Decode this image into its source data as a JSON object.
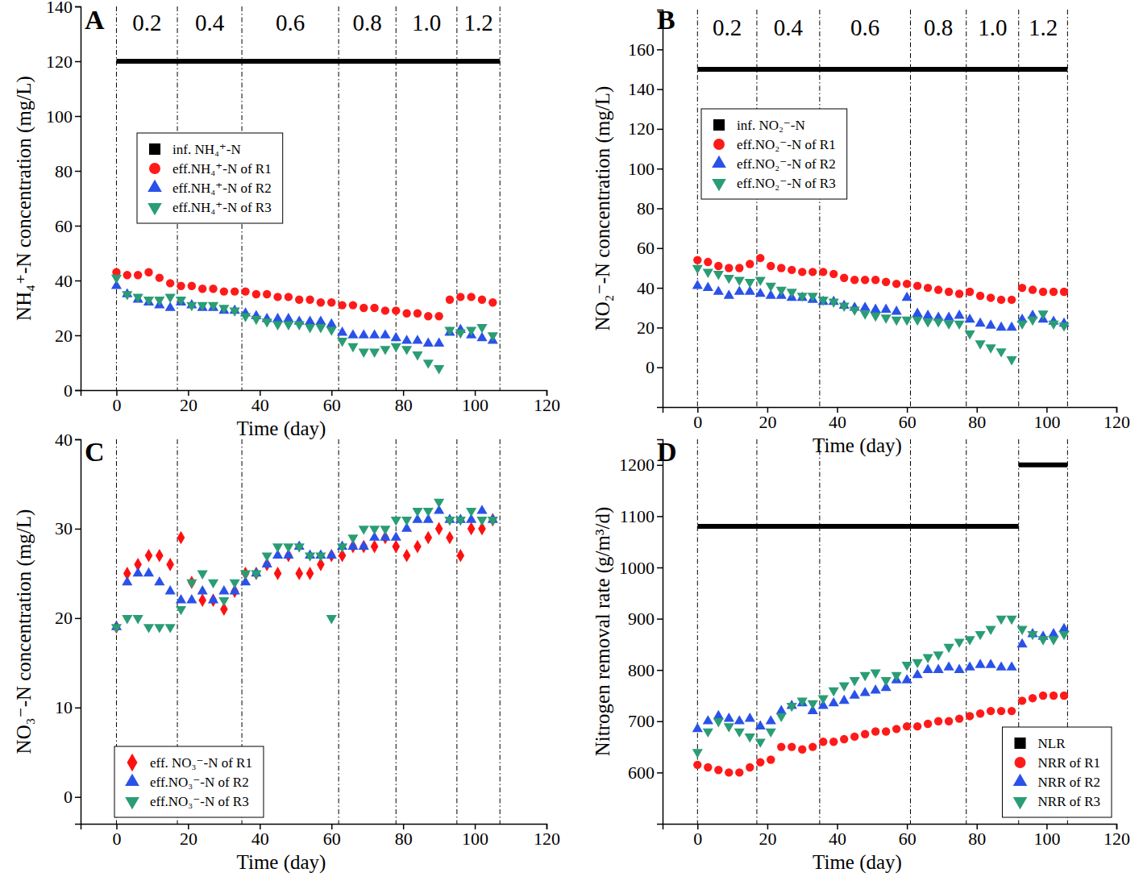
{
  "chart_data": [
    {
      "type": "scatter",
      "title": "A",
      "x_label": "Time (day)",
      "y_label": "NH₄⁺-N concentration (mg/L)",
      "xlim": [
        -10,
        120
      ],
      "ylim": [
        0,
        140
      ],
      "xticks": [
        0,
        20,
        40,
        60,
        80,
        100,
        120
      ],
      "yticks": [
        0,
        20,
        40,
        60,
        80,
        100,
        120,
        140
      ],
      "legend": "upper left",
      "phase_lines": [
        0,
        17,
        35,
        62,
        78,
        95,
        107
      ],
      "phase_labels": [
        "0.2",
        "0.4",
        "0.6",
        "0.8",
        "1.0",
        "1.2"
      ],
      "x": [
        0,
        3,
        6,
        9,
        12,
        15,
        18,
        21,
        24,
        27,
        30,
        33,
        36,
        39,
        42,
        45,
        48,
        51,
        54,
        57,
        60,
        63,
        66,
        69,
        72,
        75,
        78,
        81,
        84,
        87,
        90,
        93,
        96,
        99,
        102,
        105
      ],
      "series": [
        {
          "name": "inf. NH₄⁺-N",
          "type": "line",
          "marker": "square",
          "color": "#000000",
          "x": [
            0,
            107
          ],
          "values": [
            120,
            120
          ]
        },
        {
          "name": "eff.NH₄⁺-N of R1",
          "marker": "circle",
          "color": "#ff1a1a",
          "values": [
            43,
            42,
            42,
            43,
            41,
            39,
            38,
            38,
            37,
            37,
            36,
            36,
            36,
            35,
            35,
            34,
            34,
            33,
            33,
            32,
            32,
            31,
            31,
            30,
            30,
            29,
            29,
            28,
            28,
            27,
            27,
            33,
            34,
            34,
            33,
            32
          ]
        },
        {
          "name": "eff.NH₄⁺-N of R2",
          "marker": "triangle-up",
          "color": "#2a52e8",
          "values": [
            38,
            35,
            33,
            32,
            31,
            30,
            32,
            31,
            30,
            30,
            29,
            29,
            28,
            27,
            26,
            26,
            26,
            25,
            25,
            25,
            24,
            21,
            20,
            20,
            20,
            20,
            19,
            18,
            18,
            17,
            17,
            21,
            22,
            20,
            19,
            18
          ]
        },
        {
          "name": "eff.NH₄⁺-N of R3",
          "marker": "triangle-down",
          "color": "#2a9d74",
          "values": [
            41,
            35,
            34,
            33,
            33,
            34,
            33,
            31,
            31,
            31,
            30,
            29,
            27,
            26,
            25,
            24,
            24,
            24,
            23,
            23,
            22,
            18,
            16,
            14,
            14,
            15,
            16,
            15,
            13,
            10,
            8,
            22,
            21,
            22,
            23,
            20
          ]
        }
      ]
    },
    {
      "type": "scatter",
      "title": "B",
      "x_label": "Time (day)",
      "y_label": "NO₂⁻-N concentration (mg/L)",
      "xlim": [
        -10,
        120
      ],
      "ylim": [
        -20,
        180
      ],
      "xticks": [
        0,
        20,
        40,
        60,
        80,
        100,
        120
      ],
      "yticks": [
        0,
        20,
        40,
        60,
        80,
        100,
        120,
        140,
        160
      ],
      "legend": "upper left",
      "phase_lines": [
        0,
        17,
        35,
        61,
        77,
        92,
        106
      ],
      "phase_labels": [
        "0.2",
        "0.4",
        "0.6",
        "0.8",
        "1.0",
        "1.2"
      ],
      "x": [
        0,
        3,
        6,
        9,
        12,
        15,
        18,
        21,
        24,
        27,
        30,
        33,
        36,
        39,
        42,
        45,
        48,
        51,
        54,
        57,
        60,
        63,
        66,
        69,
        72,
        75,
        78,
        81,
        84,
        87,
        90,
        93,
        96,
        99,
        102,
        105
      ],
      "series": [
        {
          "name": "inf. NO₂⁻-N",
          "type": "line",
          "marker": "square",
          "color": "#000000",
          "x": [
            0,
            106
          ],
          "values": [
            150,
            150
          ]
        },
        {
          "name": "eff.NO₂⁻-N of R1",
          "marker": "circle",
          "color": "#ff1a1a",
          "values": [
            54,
            53,
            51,
            50,
            50,
            52,
            55,
            51,
            50,
            49,
            48,
            48,
            48,
            47,
            45,
            44,
            44,
            44,
            43,
            42,
            42,
            41,
            40,
            39,
            38,
            37,
            38,
            36,
            35,
            34,
            34,
            40,
            39,
            38,
            38,
            38
          ]
        },
        {
          "name": "eff.NO₂⁻-N of R2",
          "marker": "triangle-up",
          "color": "#2a52e8",
          "values": [
            41,
            40,
            38,
            36,
            38,
            38,
            37,
            36,
            36,
            35,
            35,
            34,
            33,
            33,
            31,
            30,
            30,
            29,
            29,
            28,
            35,
            27,
            26,
            25,
            25,
            26,
            24,
            22,
            21,
            20,
            20,
            24,
            26,
            24,
            23,
            22
          ]
        },
        {
          "name": "eff.NO₂⁻-N of R3",
          "marker": "triangle-down",
          "color": "#2a9d74",
          "values": [
            50,
            48,
            47,
            45,
            44,
            43,
            44,
            41,
            39,
            38,
            36,
            36,
            34,
            33,
            31,
            29,
            27,
            26,
            25,
            24,
            24,
            24,
            23,
            23,
            22,
            22,
            17,
            12,
            10,
            8,
            4,
            22,
            24,
            27,
            22,
            21
          ]
        }
      ]
    },
    {
      "type": "scatter",
      "title": "C",
      "x_label": "Time (day)",
      "y_label": "NO₃⁻-N concentration (mg/L)",
      "xlim": [
        -10,
        120
      ],
      "ylim": [
        -3,
        40
      ],
      "xticks": [
        0,
        20,
        40,
        60,
        80,
        100,
        120
      ],
      "yticks": [
        0,
        10,
        20,
        30,
        40
      ],
      "legend": "lower left",
      "phase_lines": [
        0,
        17,
        35,
        62,
        78,
        95,
        107
      ],
      "x": [
        0,
        3,
        6,
        9,
        12,
        15,
        18,
        21,
        24,
        27,
        30,
        33,
        36,
        39,
        42,
        45,
        48,
        51,
        54,
        57,
        60,
        63,
        66,
        69,
        72,
        75,
        78,
        81,
        84,
        87,
        90,
        93,
        96,
        99,
        102,
        105
      ],
      "series": [
        {
          "name": "eff. NO₃⁻-N of R1",
          "marker": "diamond",
          "color": "#ff1010",
          "values": [
            19,
            25,
            26,
            27,
            27,
            26,
            29,
            24,
            22,
            22,
            21,
            23,
            25,
            25,
            26,
            25,
            27,
            25,
            25,
            26,
            27,
            27,
            28,
            28,
            28,
            29,
            28,
            27,
            28,
            29,
            30,
            29,
            27,
            30,
            30,
            31
          ]
        },
        {
          "name": "eff.NO₃⁻-N of R2",
          "marker": "triangle-up",
          "color": "#2a52e8",
          "values": [
            19,
            24,
            25,
            25,
            24,
            23,
            22,
            22,
            23,
            22,
            23,
            23,
            24,
            25,
            26,
            27,
            27,
            28,
            27,
            27,
            27,
            28,
            28,
            28,
            29,
            29,
            29,
            30,
            31,
            31,
            32,
            31,
            31,
            31,
            32,
            31
          ]
        },
        {
          "name": "eff.NO₃⁻-N of R3",
          "marker": "triangle-down",
          "color": "#2a9d74",
          "values": [
            19,
            20,
            20,
            19,
            19,
            19,
            21,
            24,
            25,
            24,
            22,
            24,
            25,
            25,
            27,
            28,
            28,
            28,
            27,
            27,
            20,
            28,
            29,
            30,
            30,
            30,
            31,
            31,
            32,
            32,
            33,
            31,
            31,
            32,
            31,
            31
          ]
        }
      ]
    },
    {
      "type": "scatter",
      "title": "D",
      "x_label": "Time (day)",
      "y_label": "Nitrogen removal rate (g/m³/d)",
      "xlim": [
        -10,
        120
      ],
      "ylim": [
        500,
        1250
      ],
      "xticks": [
        0,
        20,
        40,
        60,
        80,
        100,
        120
      ],
      "yticks": [
        600,
        700,
        800,
        900,
        1000,
        1100,
        1200
      ],
      "legend": "lower right",
      "phase_lines": [
        0,
        17,
        35,
        61,
        77,
        92,
        106
      ],
      "x": [
        0,
        3,
        6,
        9,
        12,
        15,
        18,
        21,
        24,
        27,
        30,
        33,
        36,
        39,
        42,
        45,
        48,
        51,
        54,
        57,
        60,
        63,
        66,
        69,
        72,
        75,
        78,
        81,
        84,
        87,
        90,
        93,
        96,
        99,
        102,
        105
      ],
      "series": [
        {
          "name": "NLR",
          "type": "line",
          "marker": "square",
          "color": "#000000",
          "x": [
            0,
            92,
            92,
            92,
            106
          ],
          "values": [
            1080,
            1080,
            null,
            1200,
            1200
          ]
        },
        {
          "name": "NRR of R1",
          "marker": "circle",
          "color": "#ff1a1a",
          "values": [
            615,
            610,
            605,
            600,
            600,
            610,
            620,
            625,
            650,
            650,
            645,
            650,
            660,
            660,
            665,
            670,
            675,
            680,
            680,
            685,
            690,
            690,
            695,
            700,
            700,
            705,
            710,
            715,
            720,
            720,
            720,
            740,
            745,
            750,
            750,
            750
          ]
        },
        {
          "name": "NRR of R2",
          "marker": "triangle-up",
          "color": "#2a52e8",
          "values": [
            685,
            700,
            710,
            705,
            700,
            705,
            690,
            700,
            720,
            730,
            735,
            720,
            730,
            735,
            740,
            750,
            755,
            760,
            765,
            780,
            780,
            790,
            800,
            800,
            805,
            800,
            805,
            810,
            810,
            805,
            805,
            850,
            870,
            865,
            870,
            880
          ]
        },
        {
          "name": "NRR of R3",
          "marker": "triangle-down",
          "color": "#2a9d74",
          "values": [
            640,
            680,
            700,
            690,
            680,
            670,
            660,
            680,
            710,
            730,
            740,
            735,
            745,
            760,
            770,
            780,
            790,
            795,
            780,
            790,
            810,
            815,
            825,
            830,
            845,
            855,
            860,
            870,
            880,
            900,
            900,
            880,
            870,
            860,
            860,
            870
          ]
        }
      ]
    }
  ]
}
